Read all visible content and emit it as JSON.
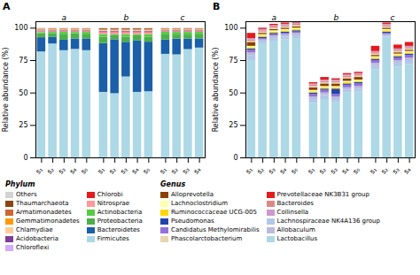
{
  "chart_data": [
    {
      "type": "bar",
      "stacked": true,
      "title": "A",
      "ylabel": "Relative abundance (%)",
      "categories": [
        "s₁",
        "s₂",
        "s₃",
        "s₄",
        "s₅",
        "s₁",
        "s₂",
        "s₃",
        "s₄",
        "s₅",
        "s₁",
        "s₂",
        "s₃",
        "s₄"
      ],
      "groups": [
        {
          "label": "a",
          "size": 5
        },
        {
          "label": "b",
          "size": 5
        },
        {
          "label": "c",
          "size": 4
        }
      ],
      "ylim": [
        0,
        105
      ],
      "yticks": [
        0,
        25,
        50,
        75,
        100
      ],
      "series": [
        {
          "name": "Firmicutes",
          "color": "#add8e6",
          "values": [
            81.67,
            87.82,
            82.66,
            83.67,
            82.66,
            50.5,
            49.5,
            62.38,
            50.5,
            50.98,
            79.84,
            79.43,
            83.5,
            84.68
          ]
        },
        {
          "name": "Bacteroidetes",
          "color": "#1a5fa8",
          "values": [
            10.96,
            4.99,
            8.06,
            8.06,
            9.07,
            37.62,
            41.58,
            26.73,
            39.6,
            38.24,
            10.98,
            12.22,
            8.15,
            7.06
          ]
        },
        {
          "name": "Proteobacteria",
          "color": "#4daf4a",
          "values": [
            2.99,
            2.99,
            4.03,
            4.03,
            3.02,
            4.95,
            2.97,
            3.96,
            3.96,
            3.92,
            3.99,
            3.05,
            3.05,
            3.02
          ]
        },
        {
          "name": "Actinobacteria",
          "color": "#55cc44",
          "values": [
            1.0,
            1.0,
            2.02,
            1.01,
            2.02,
            1.98,
            0.99,
            1.98,
            0.99,
            1.96,
            2.0,
            2.04,
            2.04,
            2.02
          ]
        },
        {
          "name": "Nitrosprae",
          "color": "#ff9999",
          "values": [
            0.5,
            0.5,
            0.5,
            0.5,
            0.5,
            0.99,
            0.99,
            0.99,
            0.99,
            0.98,
            0.5,
            0.51,
            0.51,
            0.5
          ]
        },
        {
          "name": "Chlorobi",
          "color": "#e41a1c",
          "values": [
            0.3,
            0.3,
            0.3,
            0.3,
            0.3,
            0.5,
            0.5,
            0.5,
            0.5,
            0.49,
            0.3,
            0.31,
            0.31,
            0.3
          ]
        },
        {
          "name": "Chloroflexi",
          "color": "#d4aaff",
          "values": [
            0.3,
            0.3,
            0.3,
            0.3,
            0.3,
            0.5,
            0.5,
            0.5,
            0.5,
            0.49,
            0.3,
            0.31,
            0.31,
            0.3
          ]
        },
        {
          "name": "Acidobacteria",
          "color": "#7B3F99",
          "values": [
            0.3,
            0.3,
            0.3,
            0.3,
            0.3,
            0.5,
            0.5,
            0.5,
            0.5,
            0.49,
            0.3,
            0.31,
            0.31,
            0.3
          ]
        },
        {
          "name": "Chlamydiae",
          "color": "#ffcc99",
          "values": [
            0.3,
            0.3,
            0.3,
            0.3,
            0.3,
            0.5,
            0.5,
            0.5,
            0.5,
            0.49,
            0.3,
            0.31,
            0.31,
            0.3
          ]
        },
        {
          "name": "Gemmatimonadetes",
          "color": "#ff9900",
          "values": [
            0.3,
            0.3,
            0.3,
            0.3,
            0.3,
            0.5,
            0.5,
            0.5,
            0.5,
            0.49,
            0.3,
            0.31,
            0.31,
            0.3
          ]
        },
        {
          "name": "Armatimonadetes",
          "color": "#cc6633",
          "values": [
            0.3,
            0.3,
            0.3,
            0.3,
            0.3,
            0.5,
            0.5,
            0.5,
            0.5,
            0.49,
            0.3,
            0.31,
            0.31,
            0.3
          ]
        },
        {
          "name": "Thaumarchaeota",
          "color": "#8B4513",
          "values": [
            0.3,
            0.3,
            0.3,
            0.3,
            0.3,
            0.5,
            0.5,
            0.5,
            0.5,
            0.49,
            0.3,
            0.31,
            0.31,
            0.3
          ]
        },
        {
          "name": "Others",
          "color": "#d3d3d3",
          "values": [
            0.8,
            0.6,
            0.6,
            0.6,
            0.6,
            0.5,
            0.5,
            0.5,
            0.5,
            0.49,
            0.6,
            0.61,
            0.61,
            0.6
          ]
        }
      ],
      "legend_title": "Phylum",
      "legend_entries": [
        "Others",
        "Thaumarchaeota",
        "Armatimonadetes",
        "Gemmatimonadetes",
        "Chlamydiae",
        "Acidobacteria",
        "Chloroflexi",
        "Chlorobi",
        "Nitrosprae",
        "Actinobacteria",
        "Proteobacteria",
        "Bacteroidetes",
        "Firmicutes"
      ]
    },
    {
      "type": "bar",
      "stacked": true,
      "title": "B",
      "ylabel": "Relative abundance (%)",
      "categories": [
        "s₁",
        "s₂",
        "s₃",
        "s₄",
        "s₅",
        "s₁",
        "s₂",
        "s₃",
        "s₄",
        "s₅",
        "s₁",
        "s₂",
        "s₃",
        "s₄"
      ],
      "groups": [
        {
          "label": "a",
          "size": 5
        },
        {
          "label": "b",
          "size": 5
        },
        {
          "label": "c",
          "size": 4
        }
      ],
      "ylim": [
        0,
        105
      ],
      "yticks": [
        0,
        25,
        50,
        75,
        100
      ],
      "series": [
        {
          "name": "Lactobacillus",
          "color": "#add8e6",
          "values": [
            75,
            88,
            90,
            91,
            92,
            42,
            45,
            43,
            50,
            51,
            68,
            93,
            70,
            72
          ]
        },
        {
          "name": "Lachnospiraceae NK4A136 group",
          "color": "#b0c8e8",
          "values": [
            4,
            2,
            2,
            2,
            2,
            3,
            3,
            2,
            2,
            2,
            3,
            1,
            3,
            3
          ]
        },
        {
          "name": "Allobaculum",
          "color": "#bbbbdd",
          "values": [
            2,
            1,
            2,
            2,
            2,
            2,
            2,
            2,
            2,
            2,
            2,
            1,
            2,
            2
          ]
        },
        {
          "name": "Candidatus Methylomirabilis",
          "color": "#9370DB",
          "values": [
            2,
            1,
            1,
            1,
            1,
            2,
            2,
            2,
            2,
            2,
            2,
            1,
            2,
            2
          ]
        },
        {
          "name": "Pseudomonas",
          "color": "#2244aa",
          "values": [
            1,
            1,
            1,
            1,
            1,
            1,
            1,
            4,
            1,
            1,
            1,
            1,
            1,
            1
          ]
        },
        {
          "name": "Ruminococcaceae UCG-005",
          "color": "#ffd700",
          "values": [
            1,
            1,
            1,
            1,
            1,
            1,
            1,
            1,
            1,
            1,
            1,
            1,
            1,
            1
          ]
        },
        {
          "name": "Lachnoclostridium",
          "color": "#ffffaa",
          "values": [
            1,
            1,
            1,
            1,
            1,
            1,
            1,
            1,
            1,
            1,
            1,
            1,
            1,
            1
          ]
        },
        {
          "name": "Alloprevotella",
          "color": "#8B4000",
          "values": [
            3,
            1,
            1,
            1,
            1,
            2,
            2,
            2,
            2,
            2,
            1,
            1,
            1,
            1
          ]
        },
        {
          "name": "Phascolarctobacterium",
          "color": "#e8d5b0",
          "values": [
            1,
            1,
            1,
            1,
            1,
            1,
            1,
            1,
            1,
            1,
            1,
            1,
            1,
            1
          ]
        },
        {
          "name": "Bacteroides",
          "color": "#dd8888",
          "values": [
            1,
            1,
            1,
            1,
            1,
            1,
            1,
            1,
            1,
            1,
            1,
            1,
            1,
            1
          ]
        },
        {
          "name": "Collinsella",
          "color": "#cc99cc",
          "values": [
            1,
            1,
            1,
            1,
            1,
            1,
            1,
            1,
            1,
            1,
            1,
            1,
            1,
            1
          ]
        },
        {
          "name": "Prevotellaceae NK3B31 group",
          "color": "#e41a1c",
          "values": [
            4,
            1,
            1,
            1,
            1,
            1,
            2,
            1,
            1,
            1,
            4,
            1,
            3,
            3
          ]
        }
      ],
      "legend_title": "Genus",
      "legend_entries": [
        "Alloprevotella",
        "Lachnoclostridium",
        "Ruminococcaceae UCG-005",
        "Pseudomonas",
        "Candidatus Methylomirabilis",
        "Phascolarctobacterium",
        "Prevotellaceae NK3B31 group",
        "Bacteroides",
        "Collinsella",
        "Lachnospiraceae NK4A136 group",
        "Allobaculum",
        "Lactobacillus"
      ]
    }
  ]
}
